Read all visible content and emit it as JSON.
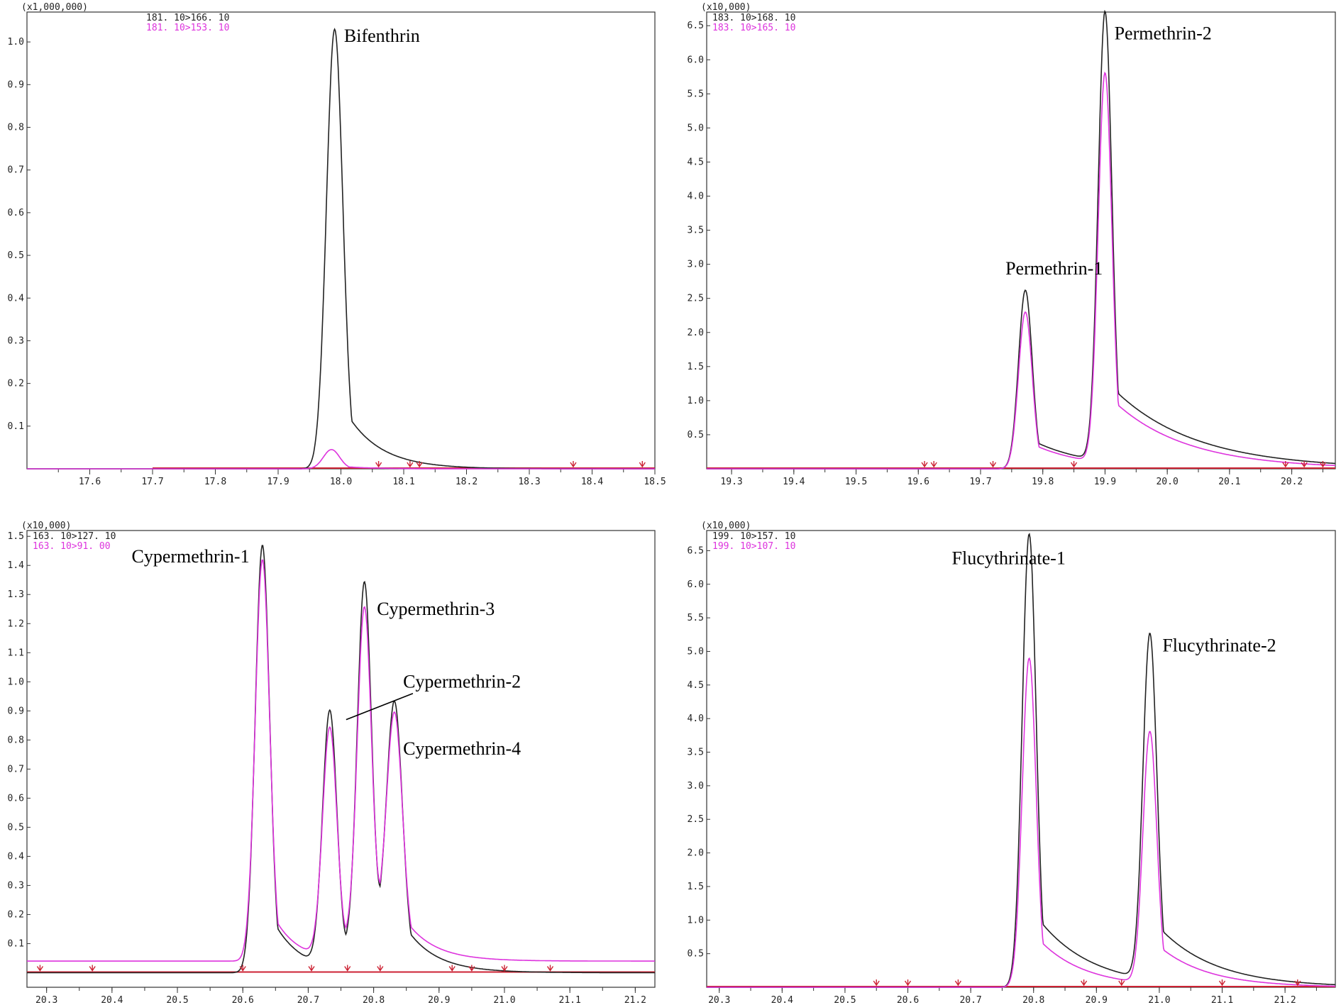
{
  "figure": {
    "layout": "2x2 grid of chromatograms"
  },
  "chart_data": [
    {
      "type": "line",
      "panel": "top-left",
      "scale_label": "(x1,000,000)",
      "xlim": [
        17.5,
        18.5
      ],
      "ylim": [
        0,
        1.07
      ],
      "xticks": [
        17.6,
        17.7,
        17.8,
        17.9,
        18.0,
        18.1,
        18.2,
        18.3,
        18.4,
        18.5
      ],
      "xtick_labels": [
        "17.6",
        "17.7",
        "17.8",
        "17.9",
        "18.0",
        "18.1",
        "18.2",
        "18.3",
        "18.4",
        "18.5"
      ],
      "yticks": [
        0.1,
        0.2,
        0.3,
        0.4,
        0.5,
        0.6,
        0.7,
        0.8,
        0.9,
        1.0
      ],
      "ytick_labels": [
        "0.1",
        "0.2",
        "0.3",
        "0.4",
        "0.5",
        "0.6",
        "0.7",
        "0.8",
        "0.9",
        "1.0"
      ],
      "baseline_start": 17.7,
      "integration_markers": [
        18.06,
        18.11,
        18.125,
        18.37,
        18.48
      ],
      "series": [
        {
          "name": "181. 10>166. 10",
          "color": "#222222",
          "peaks": [
            {
              "x": 17.99,
              "height": 1.03,
              "width": 0.013,
              "tail": 0.018
            }
          ]
        },
        {
          "name": "181. 10>153. 10",
          "color": "#dd33dd",
          "peaks": [
            {
              "x": 17.985,
              "height": 0.045,
              "width": 0.013,
              "tail": 0.015
            }
          ]
        }
      ],
      "annotations": [
        {
          "text": "Bifenthrin",
          "x": 18.005,
          "y": 1.0
        }
      ]
    },
    {
      "type": "line",
      "panel": "top-right",
      "scale_label": "(x10,000)",
      "xlim": [
        19.26,
        20.27
      ],
      "ylim": [
        0,
        6.7
      ],
      "xticks": [
        19.3,
        19.4,
        19.5,
        19.6,
        19.7,
        19.8,
        19.9,
        20.0,
        20.1,
        20.2
      ],
      "xtick_labels": [
        "19.3",
        "19.4",
        "19.5",
        "19.6",
        "19.7",
        "19.8",
        "19.9",
        "20.0",
        "20.1",
        "20.2"
      ],
      "yticks": [
        0.5,
        1.0,
        1.5,
        2.0,
        2.5,
        3.0,
        3.5,
        4.0,
        4.5,
        5.0,
        5.5,
        6.0,
        6.5
      ],
      "ytick_labels": [
        "0.5",
        "1.0",
        "1.5",
        "2.0",
        "2.5",
        "3.0",
        "3.5",
        "4.0",
        "4.5",
        "5.0",
        "5.5",
        "6.0",
        "6.5"
      ],
      "baseline_start": 19.26,
      "integration_markers": [
        19.61,
        19.625,
        19.72,
        19.85,
        20.19,
        20.22,
        20.25
      ],
      "series": [
        {
          "name": "183. 10>168. 10",
          "color": "#222222",
          "peaks": [
            {
              "x": 19.772,
              "height": 2.62,
              "width": 0.011,
              "tail": 0.03
            },
            {
              "x": 19.9,
              "height": 6.6,
              "width": 0.011,
              "tail": 0.045
            }
          ]
        },
        {
          "name": "183. 10>165. 10",
          "color": "#dd33dd",
          "peaks": [
            {
              "x": 19.772,
              "height": 2.3,
              "width": 0.011,
              "tail": 0.028
            },
            {
              "x": 19.9,
              "height": 5.72,
              "width": 0.011,
              "tail": 0.04
            }
          ]
        }
      ],
      "annotations": [
        {
          "text": "Permethrin-1",
          "x": 19.74,
          "y": 2.85
        },
        {
          "text": "Permethrin-2",
          "x": 19.915,
          "y": 6.3
        }
      ]
    },
    {
      "type": "line",
      "panel": "bottom-left",
      "scale_label": "(x10,000)",
      "xlim": [
        20.27,
        21.23
      ],
      "ylim": [
        -0.05,
        1.52
      ],
      "xticks": [
        20.3,
        20.4,
        20.5,
        20.6,
        20.7,
        20.8,
        20.9,
        21.0,
        21.1,
        21.2
      ],
      "xtick_labels": [
        "20.3",
        "20.4",
        "20.5",
        "20.6",
        "20.7",
        "20.8",
        "20.9",
        "21.0",
        "21.1",
        "21.2"
      ],
      "yticks": [
        0.1,
        0.2,
        0.3,
        0.4,
        0.5,
        0.6,
        0.7,
        0.8,
        0.9,
        1.0,
        1.1,
        1.2,
        1.3,
        1.4,
        1.5
      ],
      "ytick_labels": [
        "0.1",
        "0.2",
        "0.3",
        "0.4",
        "0.5",
        "0.6",
        "0.7",
        "0.8",
        "0.9",
        "1.0",
        "1.1",
        "1.2",
        "1.3",
        "1.4",
        "1.5"
      ],
      "baseline_start": 20.27,
      "integration_markers": [
        20.29,
        20.37,
        20.6,
        20.705,
        20.76,
        20.81,
        20.92,
        20.95,
        21.0,
        21.07
      ],
      "series": [
        {
          "name": "163. 10>127. 10",
          "color": "#222222",
          "peaks": [
            {
              "x": 20.63,
              "height": 1.47,
              "width": 0.011,
              "tail": 0.014
            },
            {
              "x": 20.733,
              "height": 0.88,
              "width": 0.011,
              "tail": 0.01
            },
            {
              "x": 20.786,
              "height": 1.31,
              "width": 0.011,
              "tail": 0.012
            },
            {
              "x": 20.832,
              "height": 0.86,
              "width": 0.012,
              "tail": 0.017
            }
          ]
        },
        {
          "name": "163. 10>91. 00",
          "color": "#dd33dd",
          "baseline_level": 0.04,
          "peaks": [
            {
              "x": 20.63,
              "height": 1.38,
              "width": 0.011,
              "tail": 0.012
            },
            {
              "x": 20.733,
              "height": 0.79,
              "width": 0.011,
              "tail": 0.01
            },
            {
              "x": 20.786,
              "height": 1.19,
              "width": 0.011,
              "tail": 0.012
            },
            {
              "x": 20.832,
              "height": 0.79,
              "width": 0.012,
              "tail": 0.016
            }
          ]
        }
      ],
      "annotations": [
        {
          "text": "Cypermethrin-1",
          "x": 20.43,
          "y": 1.41
        },
        {
          "text": "Cypermethrin-3",
          "x": 20.805,
          "y": 1.23
        },
        {
          "text": "Cypermethrin-2",
          "x": 20.845,
          "y": 0.98
        },
        {
          "text": "Cypermethrin-4",
          "x": 20.845,
          "y": 0.75
        }
      ]
    },
    {
      "type": "line",
      "panel": "bottom-right",
      "scale_label": "(x10,000)",
      "xlim": [
        20.28,
        21.28
      ],
      "ylim": [
        0,
        6.8
      ],
      "xticks": [
        20.3,
        20.4,
        20.5,
        20.6,
        20.7,
        20.8,
        20.9,
        21.0,
        21.1,
        21.2
      ],
      "xtick_labels": [
        "20.3",
        "20.4",
        "20.5",
        "20.6",
        "20.7",
        "20.8",
        "20.9",
        "21.0",
        "21.1",
        "21.2"
      ],
      "yticks": [
        0.5,
        1.0,
        1.5,
        2.0,
        2.5,
        3.0,
        3.5,
        4.0,
        4.5,
        5.0,
        5.5,
        6.0,
        6.5
      ],
      "ytick_labels": [
        "0.5",
        "1.0",
        "1.5",
        "2.0",
        "2.5",
        "3.0",
        "3.5",
        "4.0",
        "4.5",
        "5.0",
        "5.5",
        "6.0",
        "6.5"
      ],
      "baseline_start": 20.28,
      "integration_markers": [
        20.55,
        20.6,
        20.68,
        20.88,
        20.94,
        21.1,
        21.22
      ],
      "series": [
        {
          "name": "199. 10>157. 10",
          "color": "#222222",
          "peaks": [
            {
              "x": 20.793,
              "height": 6.75,
              "width": 0.011,
              "tail": 0.028
            },
            {
              "x": 20.985,
              "height": 5.15,
              "width": 0.011,
              "tail": 0.03
            }
          ]
        },
        {
          "name": "199. 10>107. 10",
          "color": "#dd33dd",
          "peaks": [
            {
              "x": 20.793,
              "height": 4.9,
              "width": 0.011,
              "tail": 0.024
            },
            {
              "x": 20.985,
              "height": 3.75,
              "width": 0.011,
              "tail": 0.026
            }
          ]
        }
      ],
      "annotations": [
        {
          "text": "Flucythrinate-1",
          "x": 20.67,
          "y": 6.3
        },
        {
          "text": "Flucythrinate-2",
          "x": 21.005,
          "y": 5.0
        }
      ]
    }
  ]
}
